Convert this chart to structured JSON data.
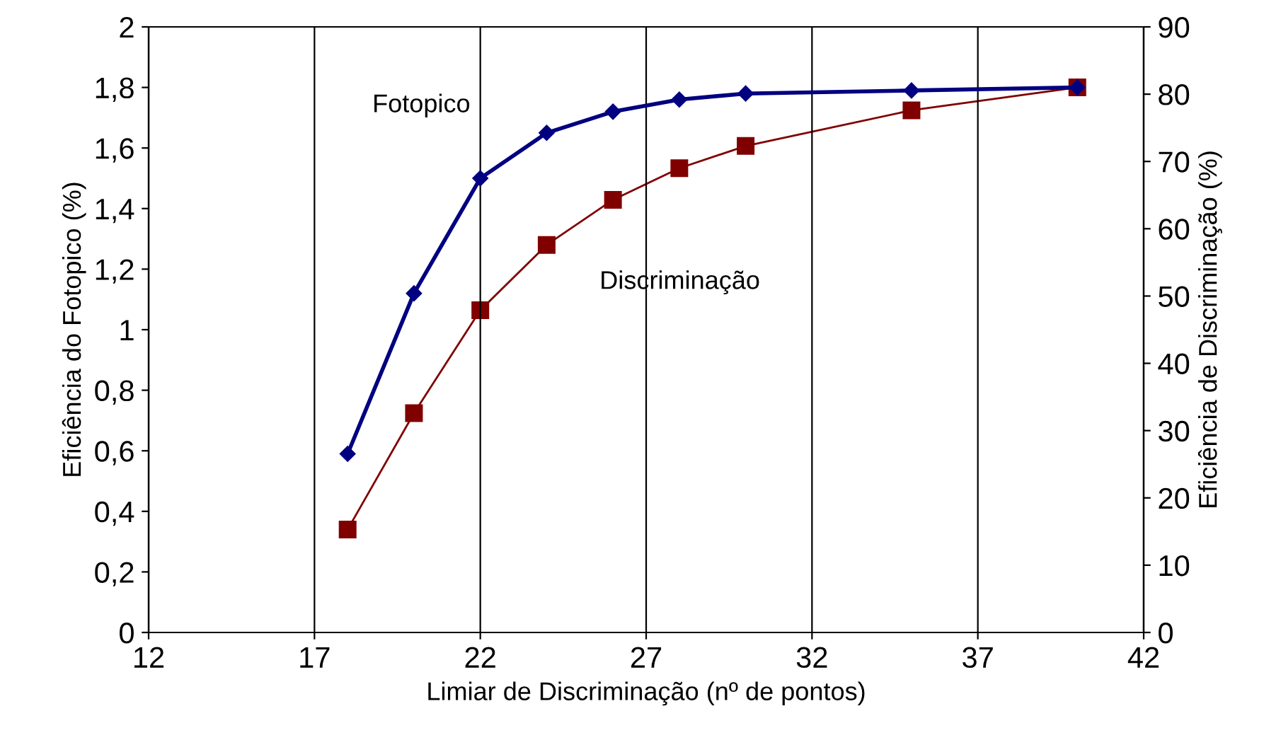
{
  "chart_data": {
    "type": "line",
    "xlabel": "Limiar de Discriminação (nº de pontos)",
    "ylabel": "Eficiência do Fotopico (%)",
    "y2label": "Eficiência de Discriminação (%)",
    "xlim": [
      12,
      42
    ],
    "xticks": [
      12,
      17,
      22,
      27,
      32,
      37,
      42
    ],
    "ylim": [
      0,
      2
    ],
    "yticks": [
      0,
      {
        "value": 0.2,
        "label": "0,2"
      },
      {
        "value": 0.4,
        "label": "0,4"
      },
      {
        "value": 0.6,
        "label": "0,6"
      },
      {
        "value": 0.8,
        "label": "0,8"
      },
      1,
      {
        "value": 1.2,
        "label": "1,2"
      },
      {
        "value": 1.4,
        "label": "1,4"
      },
      {
        "value": 1.6,
        "label": "1,6"
      },
      {
        "value": 1.8,
        "label": "1,8"
      },
      2
    ],
    "y2lim": [
      0,
      90
    ],
    "y2ticks": [
      0,
      10,
      20,
      30,
      40,
      50,
      60,
      70,
      80,
      90
    ],
    "grid": "x",
    "legend": false,
    "line_style": "solid",
    "series": [
      {
        "name": "Fotopico",
        "color": "#000080",
        "marker": "diamond",
        "x": [
          18,
          20,
          22,
          24,
          26,
          28,
          30,
          35,
          40
        ],
        "values": [
          0.59,
          1.12,
          1.5,
          1.65,
          1.72,
          1.76,
          1.78,
          1.79,
          1.8
        ]
      },
      {
        "name": "Discriminação",
        "color": "#800000",
        "marker": "square",
        "axis": "y2",
        "x": [
          18,
          20,
          22,
          24,
          26,
          28,
          30,
          35,
          40
        ],
        "values": [
          15.3,
          32.6,
          47.9,
          57.6,
          64.3,
          69.0,
          72.3,
          77.6,
          81.0
        ]
      }
    ]
  }
}
